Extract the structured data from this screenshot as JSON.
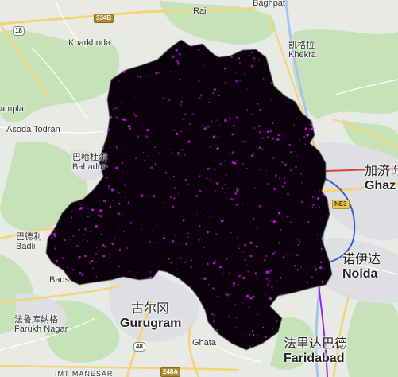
{
  "map": {
    "colors": {
      "land": "#e8eae6",
      "green": "#c5e2b9",
      "urban": "#dedfe2",
      "highway": "#f6d376",
      "overlay": "#080008",
      "hotspot": "#d41cff",
      "river": "#a6c5ee"
    },
    "places": [
      {
        "id": "baghpat",
        "cn": "",
        "en": "Baghpat"
      },
      {
        "id": "rai",
        "cn": "",
        "en": "Rai"
      },
      {
        "id": "kharkhoda",
        "cn": "",
        "en": "Kharkhoda"
      },
      {
        "id": "khekra",
        "cn": "凯格拉",
        "en": "Khekra"
      },
      {
        "id": "sampla",
        "cn": "",
        "en": "ampla"
      },
      {
        "id": "asoda",
        "cn": "",
        "en": "Asoda Todran"
      },
      {
        "id": "bahadurgarh",
        "cn": "巴哈杜尔",
        "en": "Bahadur"
      },
      {
        "id": "ghaziabad",
        "cn": "加济阝",
        "en": "Ghaz"
      },
      {
        "id": "badli",
        "cn": "巴德利",
        "en": "Badli"
      },
      {
        "id": "badsa",
        "cn": "",
        "en": "Bads"
      },
      {
        "id": "noida",
        "cn": "诺伊达",
        "en": "Noida"
      },
      {
        "id": "gurugram",
        "cn": "古尔冈",
        "en": "Gurugram"
      },
      {
        "id": "farukhnagar",
        "cn": "法鲁库纳格",
        "en": "Farukh Nagar"
      },
      {
        "id": "faridabad",
        "cn": "法里达巴德",
        "en": "Faridabad"
      },
      {
        "id": "ghata",
        "cn": "",
        "en": "Ghata"
      },
      {
        "id": "imtmanesar",
        "cn": "",
        "en": "IMT MANESAR"
      }
    ],
    "shields": [
      {
        "id": "r334b",
        "text": "334B",
        "style": "brown"
      },
      {
        "id": "r18",
        "text": "18",
        "style": "white"
      },
      {
        "id": "rne3",
        "text": "NE3",
        "style": "yellow"
      },
      {
        "id": "r48",
        "text": "48",
        "style": "white"
      },
      {
        "id": "r248a",
        "text": "248A",
        "style": "brown"
      }
    ]
  }
}
